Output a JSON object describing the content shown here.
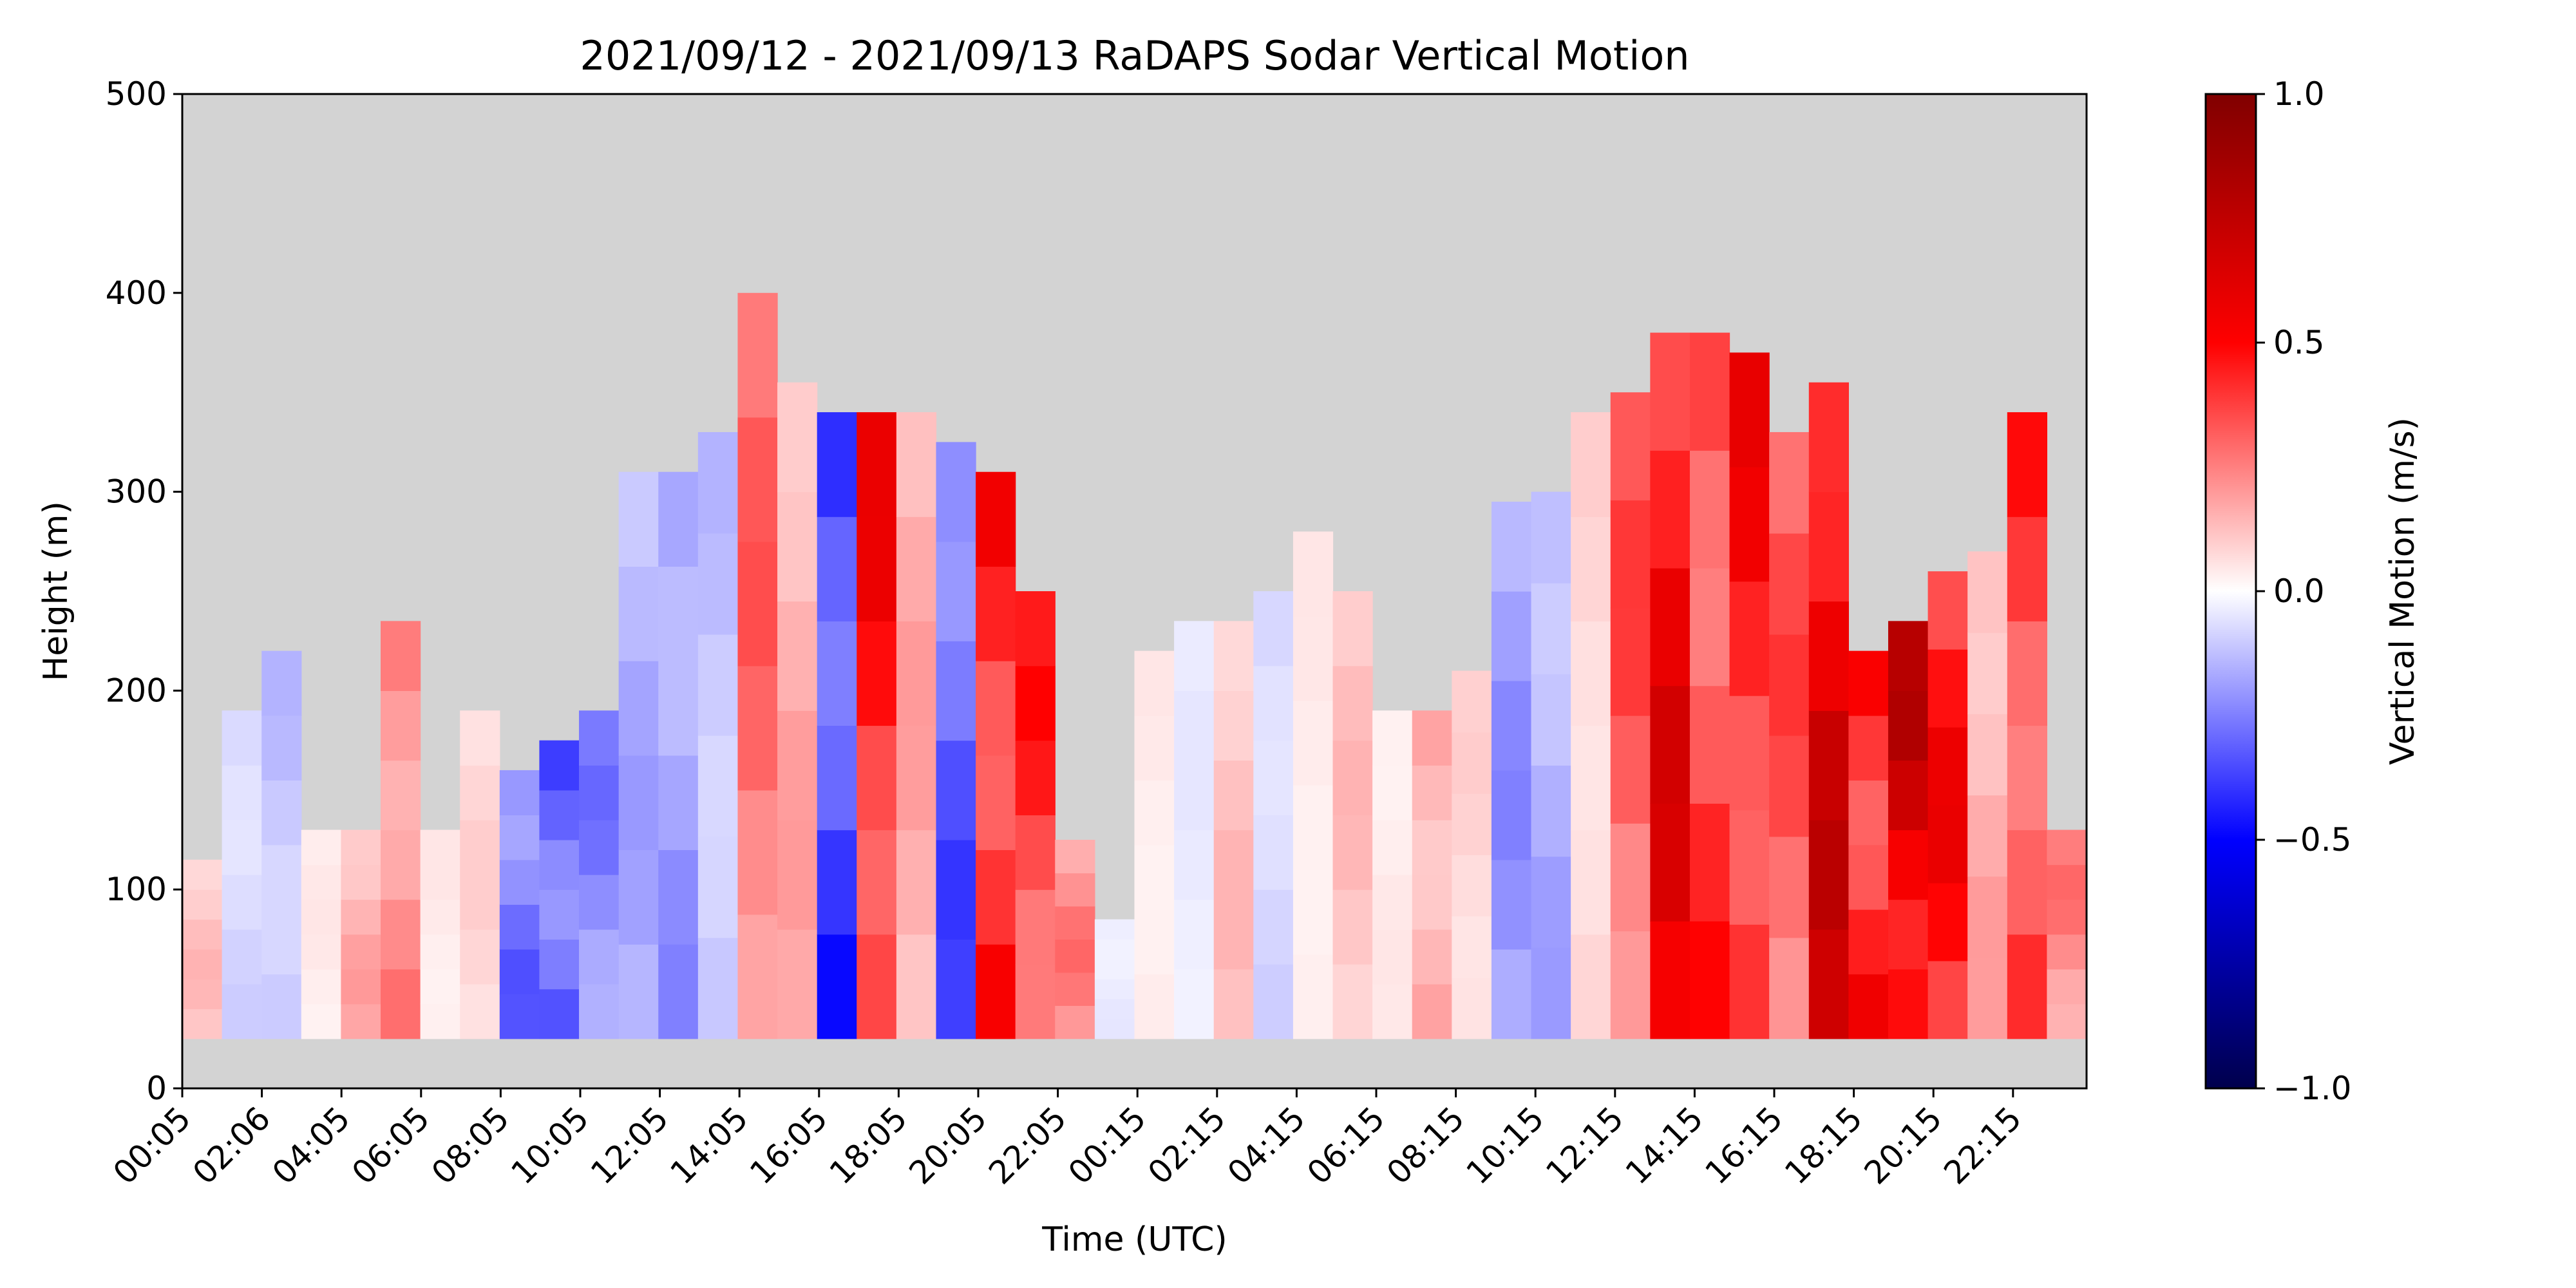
{
  "chart_data": {
    "type": "heatmap",
    "title": "2021/09/12 - 2021/09/13 RaDAPS Sodar Vertical Motion",
    "xlabel": "Time (UTC)",
    "ylabel": "Height (m)",
    "colorbar_label": "Vertical Motion (m/s)",
    "x_ticks": [
      "00:05",
      "02:06",
      "04:05",
      "06:05",
      "08:05",
      "10:05",
      "12:05",
      "14:05",
      "16:05",
      "18:05",
      "20:05",
      "22:05",
      "00:15",
      "02:15",
      "04:15",
      "06:15",
      "08:15",
      "10:15",
      "12:15",
      "14:15",
      "16:15",
      "18:15",
      "20:15",
      "22:15"
    ],
    "y_ticks": [
      0,
      100,
      200,
      300,
      400,
      500
    ],
    "ylim": [
      0,
      500
    ],
    "color_scale": {
      "colormap": "seismic",
      "min": -1.0,
      "max": 1.0,
      "ticks": [
        -1.0,
        -0.5,
        0.0,
        0.5,
        1.0
      ],
      "tick_labels": [
        "−1.0",
        "−0.5",
        "0.0",
        "0.5",
        "1.0"
      ]
    },
    "colors": {
      "missing": "#d3d3d3",
      "negative": "#0000ff",
      "zero": "#ffffff",
      "positive": "#ff0000",
      "strong_positive": "#8b0000",
      "strong_negative": "#00004c"
    },
    "data_bottom_height_m": 25,
    "time_bins": 48,
    "data_top_height_m": [
      115,
      190,
      220,
      130,
      130,
      235,
      130,
      190,
      160,
      175,
      190,
      310,
      310,
      330,
      400,
      355,
      340,
      340,
      340,
      325,
      310,
      250,
      125,
      85,
      220,
      235,
      235,
      250,
      280,
      250,
      190,
      190,
      210,
      295,
      300,
      340,
      350,
      380,
      380,
      370,
      330,
      355,
      220,
      235,
      260,
      270,
      340,
      130
    ],
    "mean_vertical_motion_m_s": [
      0.15,
      -0.1,
      -0.15,
      0.05,
      0.2,
      0.3,
      0.05,
      0.1,
      -0.35,
      -0.4,
      -0.3,
      -0.2,
      -0.25,
      -0.15,
      0.35,
      0.2,
      -0.5,
      0.6,
      0.2,
      -0.4,
      0.6,
      0.5,
      0.3,
      -0.05,
      0.05,
      -0.05,
      0.15,
      -0.1,
      0.05,
      0.15,
      0.05,
      0.2,
      0.1,
      -0.25,
      -0.2,
      0.1,
      0.4,
      0.7,
      0.5,
      0.6,
      0.4,
      0.8,
      0.6,
      0.85,
      0.6,
      0.2,
      0.5,
      0.3
    ]
  }
}
